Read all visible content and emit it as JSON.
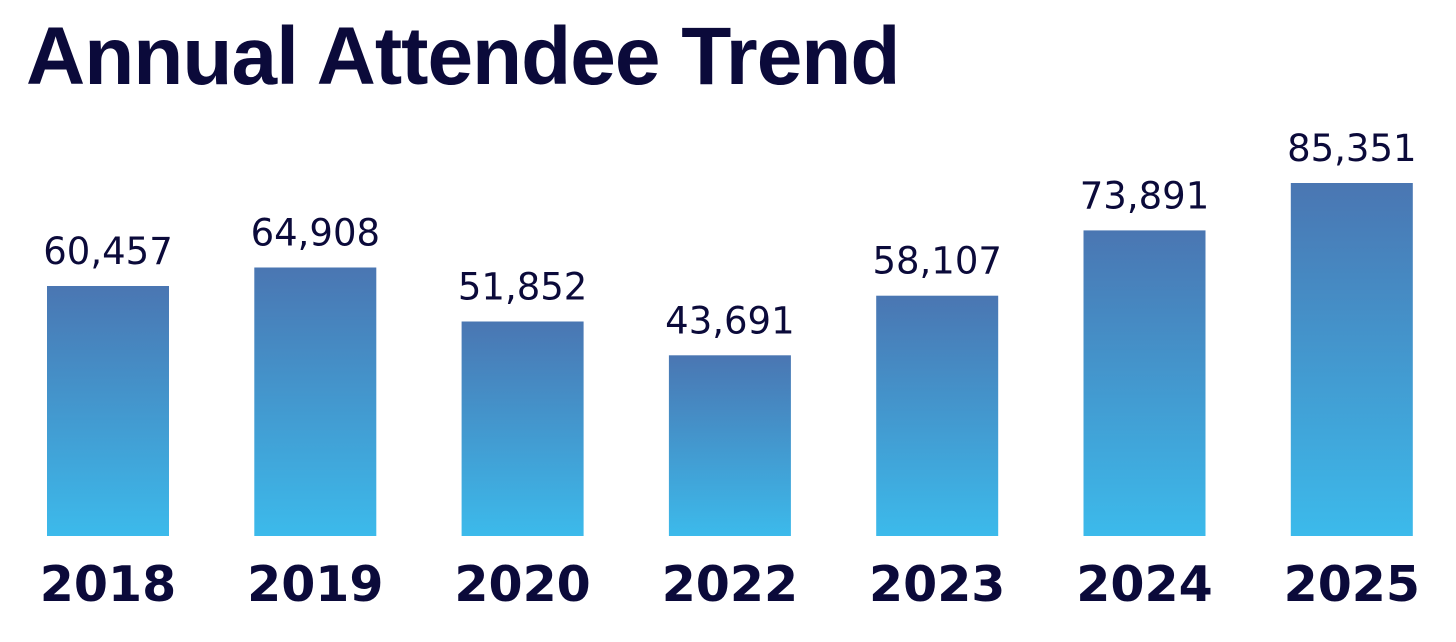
{
  "chart_data": {
    "type": "bar",
    "title": "Annual Attendee Trend",
    "categories": [
      "2018",
      "2019",
      "2020",
      "2022",
      "2023",
      "2024",
      "2025"
    ],
    "values": [
      60457,
      64908,
      51852,
      43691,
      58107,
      73891,
      85351
    ],
    "value_labels": [
      "60,457",
      "64,908",
      "51,852",
      "43,691",
      "58,107",
      "73,891",
      "85,351"
    ],
    "xlabel": "",
    "ylabel": "",
    "ylim": [
      0,
      85351
    ],
    "grid": false,
    "legend": "none"
  },
  "colors": {
    "text": "#0b0a3a",
    "bar_top": "#4a76b2",
    "bar_bottom": "#3cbaeb",
    "background": "#ffffff"
  }
}
